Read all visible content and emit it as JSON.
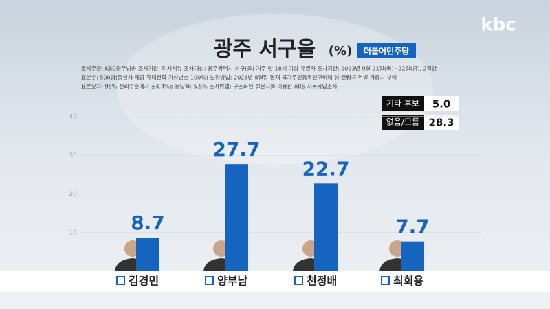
{
  "chart_data": {
    "type": "bar",
    "logo": "kbc",
    "title": "광주 서구을",
    "unit": "(%)",
    "party": "더불어민주당",
    "survey_info": [
      "조사주관: KBC광주방송   조사기관: 리서치뷰   조사대상: 광주광역시 서구(을) 거주 만 18세 이상 유권자   조사기간: 2023년 9월 21일(목)~22일(금), 2일간",
      "표본수: 500명(통신사 제공 휴대전화 가상번호 100%)   보정방법: 2023년 8월말 현재 국가주민등록인구비례 성·연령·지역별 가중치 부여",
      "표본오차: 95% 신뢰수준에서 ±4.4%p   응답률: 5.5%   조사방법: 구조화된 질문지를 이용한 ARS 자동응답조사"
    ],
    "side_results": [
      {
        "name": "기타 후보",
        "value": "5.0"
      },
      {
        "name": "없음/모름",
        "value": "28.3"
      }
    ],
    "categories": [
      "김경민",
      "양부남",
      "천정배",
      "최회용"
    ],
    "values": [
      8.7,
      27.7,
      22.7,
      7.7
    ],
    "color": "#1565c0",
    "ylim": [
      0,
      40
    ],
    "yticks": [
      10,
      20,
      30,
      40
    ],
    "grid": true
  }
}
